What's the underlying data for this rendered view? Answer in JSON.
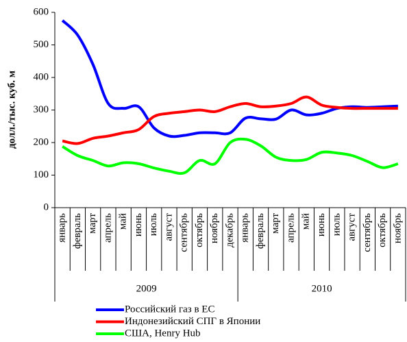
{
  "chart_data": {
    "type": "line",
    "y_label": "долл./тыс. куб. м",
    "categories": [
      "январь",
      "февраль",
      "март",
      "апрель",
      "май",
      "июнь",
      "июль",
      "август",
      "сентябрь",
      "октябрь",
      "ноябрь",
      "декабрь",
      "январь",
      "февраль",
      "март",
      "апрель",
      "май",
      "июнь",
      "июль",
      "август",
      "сентябрь",
      "октябрь",
      "ноябрь"
    ],
    "year_labels": [
      "2009",
      "2010"
    ],
    "series": [
      {
        "name": "Российский газ в ЕС",
        "color": "#0000ff",
        "values": [
          575,
          530,
          440,
          320,
          305,
          310,
          245,
          220,
          222,
          230,
          230,
          230,
          275,
          273,
          272,
          300,
          285,
          290,
          305,
          310,
          308,
          310,
          312
        ]
      },
      {
        "name": "Индонезийский СПГ в Японии",
        "color": "#ff0000",
        "values": [
          205,
          197,
          213,
          220,
          230,
          240,
          280,
          290,
          295,
          300,
          295,
          310,
          320,
          310,
          312,
          320,
          340,
          315,
          308,
          305,
          305,
          305,
          305
        ]
      },
      {
        "name": "США, Henry Hub",
        "color": "#00ff00",
        "values": [
          188,
          160,
          145,
          128,
          138,
          135,
          122,
          112,
          107,
          145,
          135,
          200,
          210,
          190,
          155,
          145,
          148,
          170,
          168,
          160,
          142,
          123,
          135
        ]
      }
    ],
    "ylim": [
      0,
      600
    ],
    "yticks": [
      0,
      100,
      200,
      300,
      400,
      500,
      600
    ]
  }
}
